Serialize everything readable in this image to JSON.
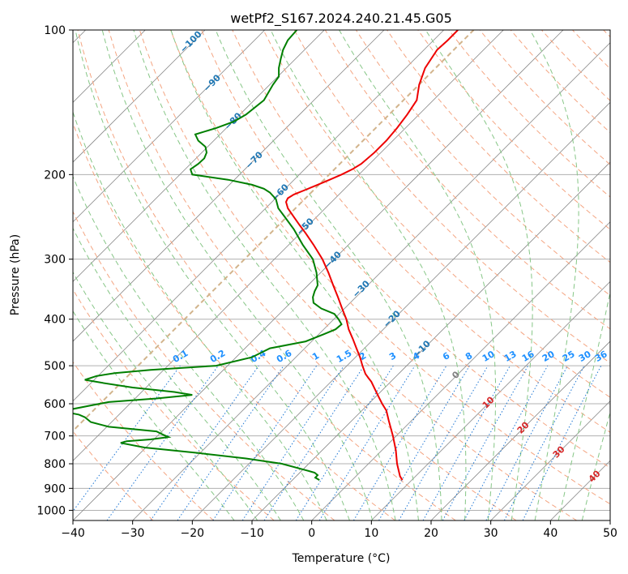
{
  "chart_data": {
    "type": "line",
    "title": "wetPf2_S167.2024.240.21.45.G05",
    "xlabel": "Temperature (°C)",
    "ylabel": "Pressure (hPa)",
    "xlim": [
      -40,
      50
    ],
    "ylim": [
      1050,
      100
    ],
    "y_scale": "log",
    "grid": true,
    "x_ticks": [
      "−40",
      "−30",
      "−20",
      "−10",
      "0",
      "10",
      "20",
      "30",
      "40",
      "50"
    ],
    "x_tick_values": [
      -40,
      -30,
      -20,
      -10,
      0,
      10,
      20,
      30,
      40,
      50
    ],
    "y_ticks": [
      "100",
      "200",
      "300",
      "400",
      "500",
      "600",
      "700",
      "800",
      "900",
      "1000"
    ],
    "y_tick_values": [
      100,
      200,
      300,
      400,
      500,
      600,
      700,
      800,
      900,
      1000
    ],
    "series": [
      {
        "color": "#ee0000",
        "p": [
          865,
          850,
          800,
          750,
          700,
          650,
          620,
          600,
          580,
          560,
          540,
          530,
          520,
          500,
          480,
          460,
          440,
          420,
          400,
          380,
          360,
          340,
          320,
          300,
          280,
          265,
          255,
          245,
          235,
          228,
          224,
          220,
          215,
          210,
          205,
          200,
          195,
          190,
          180,
          170,
          160,
          150,
          140,
          130,
          120,
          110,
          105,
          100
        ],
        "t": [
          15.2,
          14.8,
          14.3,
          14.1,
          13.6,
          12.9,
          12.5,
          11.8,
          11.2,
          10.6,
          10.0,
          9.5,
          9.0,
          8.5,
          8.1,
          7.5,
          6.9,
          6.2,
          5.8,
          5.1,
          4.4,
          3.6,
          2.8,
          1.8,
          0.3,
          -1.0,
          -2.0,
          -3.0,
          -4.0,
          -4.3,
          -4.0,
          -3.0,
          -1.0,
          1.0,
          3.0,
          5.0,
          6.8,
          8.3,
          10.5,
          12.5,
          14.3,
          16.0,
          17.6,
          18.0,
          19.0,
          21.0,
          22.8,
          24.5
        ]
      },
      {
        "color": "#007f00",
        "p": [
          865,
          855,
          845,
          835,
          825,
          800,
          780,
          760,
          740,
          724,
          718,
          712,
          704,
          695,
          685,
          670,
          655,
          640,
          632,
          622,
          605,
          595,
          585,
          575,
          567,
          555,
          543,
          535,
          525,
          518,
          510,
          500,
          480,
          460,
          445,
          430,
          420,
          410,
          400,
          390,
          380,
          370,
          360,
          350,
          340,
          320,
          300,
          280,
          260,
          245,
          235,
          225,
          218,
          214,
          210,
          205,
          200,
          195,
          190,
          185,
          180,
          175,
          170,
          165,
          160,
          155,
          150,
          140,
          130,
          125,
          120,
          115,
          110,
          105,
          100
        ],
        "t": [
          1.3,
          0.6,
          1.0,
          0.5,
          -1.0,
          -5.0,
          -11.0,
          -19.0,
          -28.0,
          -32.0,
          -31.0,
          -27.0,
          -24.0,
          -25.0,
          -26.0,
          -34.0,
          -37.0,
          -38.0,
          -39.0,
          -42.0,
          -37.0,
          -34.0,
          -26.0,
          -20.0,
          -23.0,
          -30.0,
          -35.0,
          -38.0,
          -36.0,
          -33.0,
          -27.0,
          -16.0,
          -10.0,
          -7.0,
          -1.0,
          2.0,
          4.0,
          5.0,
          4.5,
          3.8,
          1.6,
          0.3,
          0.2,
          0.5,
          1.0,
          0.8,
          0.2,
          -1.5,
          -3.0,
          -4.5,
          -5.6,
          -6.0,
          -7.0,
          -8.0,
          -10.0,
          -14.0,
          -20.0,
          -20.3,
          -19.0,
          -18.0,
          -17.6,
          -17.8,
          -19.0,
          -19.5,
          -16.0,
          -13.0,
          -11.0,
          -8.0,
          -6.5,
          -5.5,
          -5.5,
          -5.2,
          -4.8,
          -4.0,
          -2.5
        ]
      }
    ],
    "dry_adiabat_labels": [
      "−100",
      "−90",
      "−80",
      "−70",
      "−60",
      "−50",
      "−40",
      "−30",
      "−20",
      "−10"
    ],
    "mixing_ratio_labels": [
      "0.1",
      "0.2",
      "0.4",
      "0.6",
      "1",
      "1.5",
      "2",
      "3",
      "4",
      "6",
      "8",
      "10",
      "13",
      "16",
      "20",
      "25",
      "30",
      "36"
    ],
    "moist_adiabat_labels": [
      "0",
      "10",
      "20",
      "30",
      "40"
    ],
    "colors": {
      "dry_adiabats": "#f4a582",
      "moist_adiabats": "#86c686",
      "mixing_ratio": "#1f77d4",
      "mixing_label": "#1e90ff",
      "dry_label": "#1f77b4",
      "moist_label": "#d62728",
      "zero_label": "#808080",
      "isotherms": "#888888",
      "tan_curve": "#d2b48c",
      "grid": "#b0b0b0"
    }
  }
}
